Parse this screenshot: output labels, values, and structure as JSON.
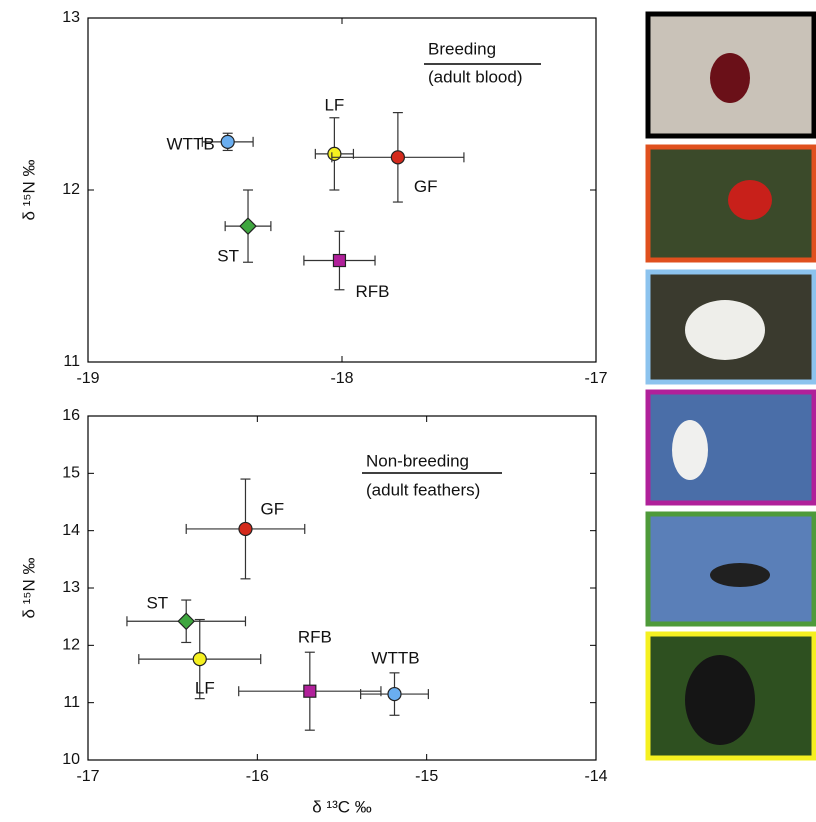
{
  "chart_data": [
    {
      "type": "scatter",
      "annotation": "Breeding",
      "annotation_note": "(adult blood)",
      "ylabel": "δ ¹⁵N ‰",
      "xlim": [
        -19,
        -17
      ],
      "xticks": [
        -19,
        -18,
        -17
      ],
      "ylim": [
        11,
        13
      ],
      "yticks": [
        11,
        12,
        13
      ],
      "series": [
        {
          "name": "WTTB",
          "color": "#6aaef0",
          "marker": "circle",
          "x": [
            -18.45
          ],
          "values": [
            12.28
          ],
          "xerr": [
            0.1
          ],
          "yerr": [
            0.05
          ]
        },
        {
          "name": "LF",
          "color": "#f5f020",
          "marker": "circle",
          "x": [
            -18.03
          ],
          "values": [
            12.21
          ],
          "xerr": [
            0.075
          ],
          "yerr": [
            0.21
          ]
        },
        {
          "name": "GF",
          "color": "#d42a1c",
          "marker": "circle",
          "x": [
            -17.78
          ],
          "values": [
            12.19
          ],
          "xerr": [
            0.26
          ],
          "yerr": [
            0.26
          ]
        },
        {
          "name": "ST",
          "color": "#3fa63f",
          "marker": "diamond",
          "x": [
            -18.37
          ],
          "values": [
            11.79
          ],
          "xerr": [
            0.09
          ],
          "yerr": [
            0.21
          ]
        },
        {
          "name": "RFB",
          "color": "#b0209a",
          "marker": "square",
          "x": [
            -18.01
          ],
          "values": [
            11.59
          ],
          "xerr": [
            0.14
          ],
          "yerr": [
            0.17
          ]
        }
      ]
    },
    {
      "type": "scatter",
      "annotation": "Non-breeding",
      "annotation_note": "(adult feathers)",
      "xlabel": "δ ¹³C ‰",
      "ylabel": "δ ¹⁵N ‰",
      "xlim": [
        -17,
        -14
      ],
      "xticks": [
        -17,
        -16,
        -15,
        -14
      ],
      "ylim": [
        10,
        16
      ],
      "yticks": [
        10,
        11,
        12,
        13,
        14,
        15,
        16
      ],
      "series": [
        {
          "name": "GF",
          "color": "#d42a1c",
          "marker": "circle",
          "x": [
            -16.07
          ],
          "values": [
            14.03
          ],
          "xerr": [
            0.35
          ],
          "yerr": [
            0.87
          ]
        },
        {
          "name": "ST",
          "color": "#3fa63f",
          "marker": "diamond",
          "x": [
            -16.42
          ],
          "values": [
            12.42
          ],
          "xerr": [
            0.35
          ],
          "yerr": [
            0.37
          ]
        },
        {
          "name": "LF",
          "color": "#f5f020",
          "marker": "circle",
          "x": [
            -16.34
          ],
          "values": [
            11.76
          ],
          "xerr": [
            0.36
          ],
          "yerr": [
            0.69
          ]
        },
        {
          "name": "RFB",
          "color": "#b0209a",
          "marker": "square",
          "x": [
            -15.69
          ],
          "values": [
            11.2
          ],
          "xerr": [
            0.42
          ],
          "yerr": [
            0.68
          ]
        },
        {
          "name": "WTTB",
          "color": "#6aaef0",
          "marker": "circle",
          "x": [
            -15.19
          ],
          "values": [
            11.15
          ],
          "xerr": [
            0.2
          ],
          "yerr": [
            0.37
          ]
        }
      ]
    }
  ]
}
